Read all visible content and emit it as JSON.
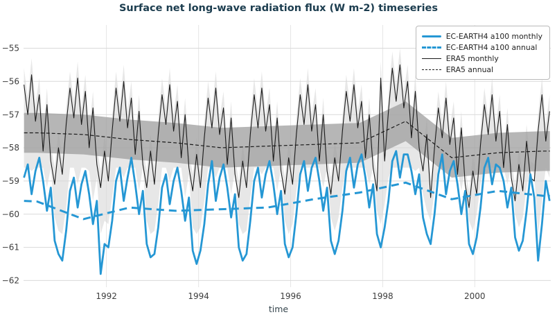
{
  "figure": {
    "title": "Surface net long-wave radiation flux (W m-2) timeseries",
    "xlabel": "time"
  },
  "colors": {
    "ec_blue": "#2597d4",
    "era5_black": "#1a1a1a",
    "band_light": "#d7d7d7",
    "band_dark": "#9e9e9e",
    "grid": "#d9d9d9",
    "grid_vertical": "#e6e6e6",
    "title_text": "#1c3d4f",
    "tick_text": "#3d3d3d"
  },
  "chart_data": {
    "type": "line",
    "title": "Surface net long-wave radiation flux (W m-2) timeseries",
    "xlabel": "time",
    "ylabel": "",
    "xlim": [
      1990.2,
      2001.65
    ],
    "ylim": [
      -62.2,
      -54.3
    ],
    "x_ticks": [
      1992,
      1994,
      1996,
      1998,
      2000
    ],
    "x_tick_labels": [
      "1992",
      "1994",
      "1996",
      "1998",
      "2000"
    ],
    "y_ticks": [
      -62,
      -61,
      -60,
      -59,
      -58,
      -57,
      -56,
      -55
    ],
    "y_tick_labels": [
      "−62",
      "−61",
      "−60",
      "−59",
      "−58",
      "−57",
      "−56",
      "−55"
    ],
    "grid": true,
    "legend_position": "upper right",
    "monthly_x_start": 1990.2083,
    "monthly_x_step": 0.0833333,
    "series": [
      {
        "name": "EC-EARTH4 a100 monthly",
        "kind": "monthly",
        "color": "ec_blue",
        "style": "solid",
        "width": 2.8,
        "values": [
          -58.9,
          -58.5,
          -59.4,
          -58.7,
          -58.3,
          -59.0,
          -59.9,
          -59.2,
          -60.8,
          -61.2,
          -61.4,
          -60.5,
          -59.3,
          -58.9,
          -59.8,
          -59.1,
          -58.7,
          -59.4,
          -60.3,
          -59.6,
          -61.8,
          -60.9,
          -61.0,
          -60.2,
          -59.0,
          -58.6,
          -59.6,
          -58.9,
          -58.3,
          -59.1,
          -60.0,
          -59.3,
          -60.9,
          -61.3,
          -61.2,
          -60.4,
          -59.2,
          -58.8,
          -59.7,
          -59.0,
          -58.6,
          -59.3,
          -60.2,
          -59.5,
          -61.1,
          -61.5,
          -61.1,
          -60.3,
          -59.1,
          -58.4,
          -59.6,
          -58.9,
          -58.5,
          -59.2,
          -60.1,
          -59.4,
          -61.0,
          -61.4,
          -61.2,
          -60.2,
          -59.0,
          -58.6,
          -59.5,
          -58.8,
          -58.4,
          -59.1,
          -60.0,
          -59.3,
          -60.9,
          -61.3,
          -61.0,
          -60.0,
          -58.8,
          -58.4,
          -59.3,
          -58.6,
          -58.3,
          -59.0,
          -59.9,
          -59.2,
          -60.8,
          -61.2,
          -60.8,
          -59.9,
          -58.7,
          -58.3,
          -59.2,
          -58.5,
          -58.2,
          -58.9,
          -59.8,
          -59.1,
          -60.6,
          -61.0,
          -60.4,
          -59.6,
          -58.4,
          -58.1,
          -58.9,
          -58.2,
          -58.2,
          -58.7,
          -59.4,
          -58.8,
          -60.1,
          -60.6,
          -60.9,
          -60.0,
          -58.8,
          -58.2,
          -59.4,
          -58.7,
          -58.4,
          -59.1,
          -60.0,
          -59.3,
          -60.9,
          -61.2,
          -60.7,
          -59.8,
          -58.6,
          -58.3,
          -59.1,
          -58.5,
          -58.6,
          -59.0,
          -59.8,
          -59.2,
          -60.7,
          -61.1,
          -60.8,
          -59.9,
          -58.8,
          -59.5,
          -61.4,
          -60.3,
          -59.0,
          -59.6
        ]
      },
      {
        "name": "EC-EARTH4 a100 annual",
        "kind": "annual",
        "color": "ec_blue",
        "style": "dashed",
        "width": 3,
        "x": [
          1990.21,
          1990.5,
          1991.5,
          1992.5,
          1993.5,
          1994.5,
          1995.5,
          1996.5,
          1997.5,
          1998.5,
          1999.5,
          2000.5,
          2001.5,
          2001.63
        ],
        "values": [
          -59.6,
          -59.62,
          -60.15,
          -59.8,
          -59.9,
          -59.85,
          -59.8,
          -59.55,
          -59.35,
          -59.05,
          -59.55,
          -59.3,
          -59.45,
          -59.45
        ]
      },
      {
        "name": "ERA5 monthly",
        "kind": "monthly",
        "color": "era5_black",
        "style": "solid",
        "width": 1.1,
        "values": [
          -56.1,
          -57.0,
          -55.8,
          -57.2,
          -56.4,
          -58.1,
          -56.7,
          -58.4,
          -59.1,
          -58.0,
          -58.8,
          -57.3,
          -56.2,
          -57.1,
          -55.9,
          -57.3,
          -56.3,
          -58.0,
          -56.8,
          -58.5,
          -59.2,
          -58.1,
          -59.0,
          -57.5,
          -56.2,
          -57.2,
          -56.0,
          -57.4,
          -56.5,
          -58.2,
          -56.9,
          -58.5,
          -59.2,
          -58.1,
          -59.1,
          -57.6,
          -56.4,
          -57.3,
          -56.1,
          -57.5,
          -56.6,
          -58.3,
          -57.0,
          -58.6,
          -59.3,
          -58.2,
          -59.2,
          -57.7,
          -56.5,
          -57.4,
          -56.2,
          -57.6,
          -56.8,
          -58.5,
          -57.1,
          -58.8,
          -59.5,
          -58.4,
          -59.2,
          -57.6,
          -56.4,
          -57.4,
          -56.2,
          -57.5,
          -56.7,
          -58.4,
          -57.1,
          -58.7,
          -59.4,
          -58.3,
          -59.1,
          -57.6,
          -56.4,
          -57.3,
          -56.1,
          -57.5,
          -56.7,
          -58.4,
          -57.0,
          -58.7,
          -59.4,
          -58.3,
          -59.0,
          -57.5,
          -56.3,
          -57.2,
          -56.1,
          -57.4,
          -56.6,
          -58.3,
          -57.0,
          -58.6,
          -59.3,
          -55.9,
          -58.4,
          -56.9,
          -55.6,
          -56.6,
          -55.5,
          -56.8,
          -56.0,
          -57.7,
          -56.3,
          -58.0,
          -58.7,
          -57.6,
          -59.5,
          -58.0,
          -56.8,
          -57.7,
          -56.5,
          -57.9,
          -57.1,
          -58.8,
          -57.4,
          -59.1,
          -59.8,
          -58.7,
          -59.4,
          -57.9,
          -56.7,
          -57.6,
          -56.4,
          -57.8,
          -56.9,
          -58.6,
          -57.3,
          -58.9,
          -59.6,
          -58.5,
          -59.3,
          -57.8,
          -58.9,
          -59.0,
          -57.5,
          -56.4,
          -57.8,
          -56.9
        ]
      },
      {
        "name": "ERA5 annual",
        "kind": "annual",
        "color": "era5_black",
        "style": "dashed",
        "width": 1.2,
        "x": [
          1990.21,
          1990.5,
          1991.5,
          1992.5,
          1993.5,
          1994.5,
          1995.5,
          1996.5,
          1997.5,
          1998.5,
          1999.5,
          2000.5,
          2001.5,
          2001.63
        ],
        "values": [
          -57.55,
          -57.55,
          -57.6,
          -57.75,
          -57.85,
          -58.0,
          -57.95,
          -57.9,
          -57.85,
          -57.2,
          -58.3,
          -58.15,
          -58.1,
          -58.1
        ]
      }
    ],
    "bands": {
      "light": {
        "description": "light gray monthly spread envelope",
        "upper_from_series": "ERA5 monthly",
        "upper_offset": 0.5,
        "lower_from_series": "EC-EARTH4 a100 monthly",
        "lower_offset": 0.7,
        "lower_clip": [
          -60.6,
          -58.6
        ],
        "opacity": 0.6
      },
      "dark": {
        "description": "dark gray annual spread around ERA5 annual",
        "around_series": "ERA5 annual",
        "half_width": 0.6,
        "opacity": 0.75
      }
    }
  }
}
